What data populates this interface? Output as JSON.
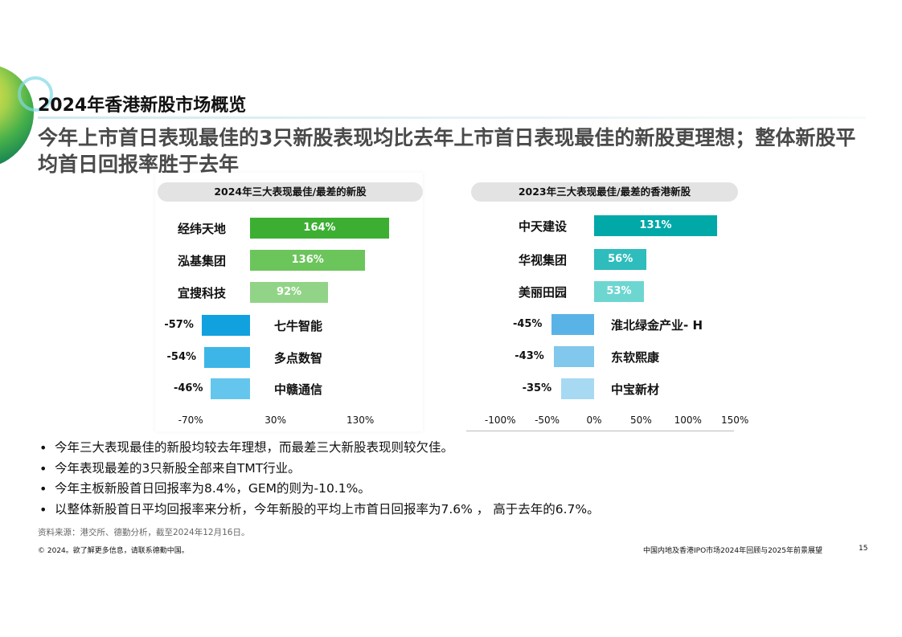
{
  "title": "2024年香港新股市场概览",
  "subtitle": "今年上市首日表现最佳的3只新股表现均比去年上市首日表现最佳的新股更理想；整体新股平均首日回报率胜于去年",
  "colors": {
    "heading_gray": "#4a4a4a",
    "green_dark": "#3caf33",
    "green_mid": "#6cc55b",
    "green_light": "#92d487",
    "blue_dark": "#12a1df",
    "blue_mid": "#3db6e7",
    "blue_light": "#64c6ec",
    "teal_dark": "#00a8a8",
    "teal_mid": "#2fbcbc",
    "teal_light": "#6ed6d1",
    "sky_dark": "#5ab3e6",
    "sky_mid": "#82c7ec",
    "sky_light": "#a8d9f3"
  },
  "chart_data": [
    {
      "type": "bar",
      "title": "2024年三大表现最佳/最差的新股",
      "categories": [
        "经纬天地",
        "泓基集团",
        "宜搜科技",
        "七牛智能",
        "多点数智",
        "中赣通信"
      ],
      "values": [
        164,
        136,
        92,
        -57,
        -54,
        -46
      ],
      "value_labels": [
        "164%",
        "136%",
        "92%",
        "-57%",
        "-54%",
        "-46%"
      ],
      "xlim": [
        -70,
        160
      ],
      "x_ticks": [
        "-70%",
        "30%",
        "130%"
      ],
      "x_tick_values": [
        -70,
        30,
        130
      ],
      "unit": "%"
    },
    {
      "type": "bar",
      "title": "2023年三大表现最佳/最差的香港新股",
      "categories": [
        "中天建设",
        "华视集团",
        "美丽田园",
        "淮北绿金产业- H",
        "东软熙康",
        "中宝新材"
      ],
      "values": [
        131,
        56,
        53,
        -45,
        -43,
        -35
      ],
      "value_labels": [
        "131%",
        "56%",
        "53%",
        "-45%",
        "-43%",
        "-35%"
      ],
      "xlim": [
        -100,
        150
      ],
      "x_ticks": [
        "-100%",
        "-50%",
        "0%",
        "50%",
        "100%",
        "150%"
      ],
      "x_tick_values": [
        -100,
        -50,
        0,
        50,
        100,
        150
      ],
      "unit": "%"
    }
  ],
  "bullets": [
    "今年三大表现最佳的新股均较去年理想，而最差三大新股表现则较欠佳。",
    "今年表现最差的3只新股全部来自TMT行业。",
    "今年主板新股首日回报率为8.4%，GEM的则为-10.1%。",
    "以整体新股首日平均回报率来分析，今年新股的平均上市首日回报率为7.6% ， 高于去年的6.7%。"
  ],
  "source": "资料来源：港交所、德勤分析，截至2024年12月16日。",
  "footer_left": "© 2024。欲了解更多信息，请联系德勤中国。",
  "footer_right": "中国内地及香港IPO市场2024年回顾与2025年前景展望",
  "page_number": "15"
}
